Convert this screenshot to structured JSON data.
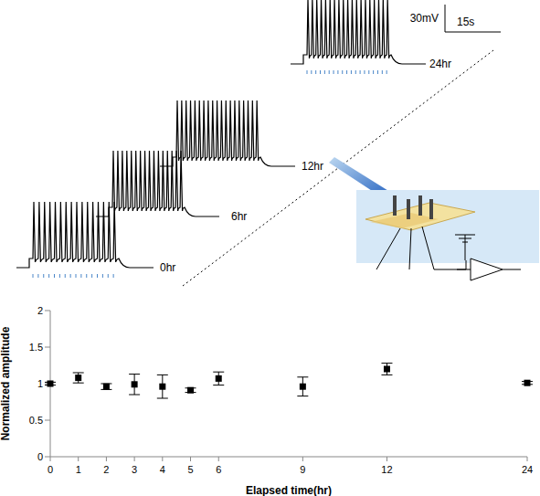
{
  "figure": {
    "scale_bar": {
      "voltage": "30mV",
      "time": "15s"
    },
    "traces": [
      {
        "label": "0hr",
        "spikes": 16,
        "stimulus": true
      },
      {
        "label": "6hr",
        "spikes": 16,
        "stimulus": false
      },
      {
        "label": "12hr",
        "spikes": 19,
        "stimulus": false
      },
      {
        "label": "24hr",
        "spikes": 19,
        "stimulus": true
      }
    ]
  },
  "chart_data": {
    "type": "scatter",
    "x_label": "Elapsed time(hr)",
    "y_label": "Normalized amplitude",
    "categories": [
      "0",
      "1",
      "2",
      "3",
      "4",
      "5",
      "6",
      null,
      null,
      "9",
      null,
      null,
      "12",
      null,
      null,
      null,
      null,
      "24"
    ],
    "values": [
      1.0,
      1.08,
      0.96,
      0.99,
      0.96,
      0.91,
      1.07,
      null,
      null,
      0.96,
      null,
      null,
      1.2,
      null,
      null,
      null,
      null,
      1.01
    ],
    "errors": [
      0.02,
      0.07,
      0.04,
      0.14,
      0.16,
      0.03,
      0.09,
      null,
      null,
      0.13,
      null,
      null,
      0.08,
      null,
      null,
      null,
      null,
      0.02
    ],
    "color": "#000000",
    "marker": "square",
    "ylim": [
      0,
      2
    ],
    "yticks": [
      0,
      0.5,
      1,
      1.5,
      2
    ],
    "grid": false
  }
}
